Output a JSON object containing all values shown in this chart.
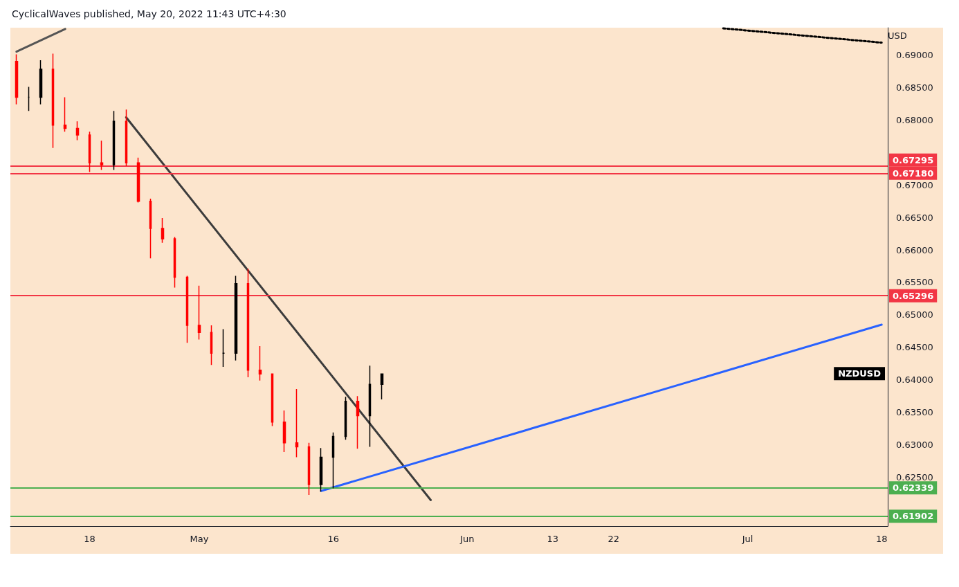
{
  "chart_data": {
    "type": "candlestick",
    "title": "CyclicalWaves published, May 20, 2022 11:43 UTC+4:30",
    "ylabel": "USD",
    "categories": [
      null,
      null,
      null,
      null,
      null,
      null,
      "18",
      null,
      null,
      null,
      null,
      null,
      null,
      null,
      null,
      "May",
      null,
      null,
      null,
      null,
      null,
      null,
      null,
      null,
      null,
      null,
      "16",
      null,
      null,
      null,
      null,
      null,
      null,
      null,
      null,
      null,
      null,
      "Jun",
      null,
      null,
      null,
      null,
      null,
      null,
      "13",
      null,
      null,
      null,
      null,
      "22",
      null,
      null,
      null,
      null,
      null,
      null,
      null,
      null,
      null,
      null,
      "Jul",
      null,
      null,
      null,
      null,
      null,
      null,
      null,
      null,
      null,
      null,
      "18"
    ],
    "ylim": [
      0.6175,
      0.6942
    ],
    "yticks": [
      {
        "value": 0.625,
        "label": "0.62500"
      },
      {
        "value": 0.63,
        "label": "0.63000"
      },
      {
        "value": 0.635,
        "label": "0.63500"
      },
      {
        "value": 0.64,
        "label": "0.64000"
      },
      {
        "value": 0.645,
        "label": "0.64500"
      },
      {
        "value": 0.65,
        "label": "0.65000"
      },
      {
        "value": 0.655,
        "label": "0.65500"
      },
      {
        "value": 0.66,
        "label": "0.66000"
      },
      {
        "value": 0.665,
        "label": "0.66500"
      },
      {
        "value": 0.67,
        "label": "0.67000"
      },
      {
        "value": 0.68,
        "label": "0.68000"
      },
      {
        "value": 0.685,
        "label": "0.68500"
      },
      {
        "value": 0.69,
        "label": "0.69000"
      }
    ],
    "marker": "none",
    "series": [
      {
        "type": "candlestick",
        "name": "NZDUSD",
        "ohlc": [
          [
            0.689,
            0.6901,
            0.6824,
            0.6835
          ],
          [
            0.6835,
            0.6851,
            0.6814,
            0.6835
          ],
          [
            0.6835,
            0.6892,
            0.6824,
            0.6878
          ],
          [
            0.6878,
            0.6902,
            0.6757,
            0.6792
          ],
          [
            0.6792,
            0.6835,
            0.6782,
            0.6787
          ],
          [
            0.6787,
            0.6798,
            0.6769,
            0.6777
          ],
          [
            0.6777,
            0.6782,
            0.672,
            0.6734
          ],
          [
            0.6734,
            0.6768,
            0.6723,
            0.6731
          ],
          [
            0.6731,
            0.6814,
            0.6723,
            0.6798
          ],
          [
            0.6798,
            0.6816,
            0.6729,
            0.6734
          ],
          [
            0.6734,
            0.6742,
            0.6673,
            0.6675
          ],
          [
            0.6675,
            0.6679,
            0.6587,
            0.6633
          ],
          [
            0.6633,
            0.6649,
            0.6611,
            0.6617
          ],
          [
            0.6617,
            0.662,
            0.6542,
            0.6558
          ],
          [
            0.6558,
            0.656,
            0.6457,
            0.6484
          ],
          [
            0.6484,
            0.6545,
            0.6462,
            0.6473
          ],
          [
            0.6473,
            0.6484,
            0.6423,
            0.6441
          ],
          [
            0.6441,
            0.6478,
            0.642,
            0.6441
          ],
          [
            0.6441,
            0.656,
            0.643,
            0.6548
          ],
          [
            0.6548,
            0.6571,
            0.6404,
            0.6415
          ],
          [
            0.6415,
            0.6452,
            0.6399,
            0.6409
          ],
          [
            0.6409,
            0.6409,
            0.6329,
            0.6335
          ],
          [
            0.6335,
            0.6353,
            0.6289,
            0.6303
          ],
          [
            0.6303,
            0.6386,
            0.6281,
            0.6297
          ],
          [
            0.6297,
            0.6303,
            0.6223,
            0.6239
          ],
          [
            0.6239,
            0.6295,
            0.6228,
            0.6281
          ],
          [
            0.6281,
            0.6319,
            0.6233,
            0.6313
          ],
          [
            0.6313,
            0.6374,
            0.6308,
            0.6367
          ],
          [
            0.6367,
            0.6375,
            0.6294,
            0.6345
          ],
          [
            0.6345,
            0.6422,
            0.6297,
            0.6393
          ],
          [
            0.6393,
            0.6409,
            0.637,
            0.6409
          ],
          null,
          null,
          null,
          null,
          null,
          null,
          null,
          null,
          null,
          null,
          null,
          null,
          null,
          null,
          null,
          null,
          null,
          null,
          null,
          null,
          null,
          null,
          null,
          null,
          null,
          null,
          null,
          null,
          null,
          null,
          null,
          null,
          null,
          null,
          null,
          null,
          null,
          null,
          null,
          null,
          null
        ],
        "colors": [
          "#ff0000",
          "#000000",
          "#000000",
          "#ff0000",
          "#ff0000",
          "#ff0000",
          "#ff0000",
          "#ff0000",
          "#000000",
          "#ff0000",
          "#ff0000",
          "#ff0000",
          "#ff0000",
          "#ff0000",
          "#ff0000",
          "#ff0000",
          "#ff0000",
          "#000000",
          "#000000",
          "#ff0000",
          "#ff0000",
          "#ff0000",
          "#ff0000",
          "#ff0000",
          "#ff0000",
          "#000000",
          "#000000",
          "#000000",
          "#ff0000",
          "#000000",
          "#000000",
          null,
          null,
          null,
          null,
          null,
          null,
          null,
          null,
          null,
          null,
          null,
          null,
          null,
          null,
          null,
          null,
          null,
          null,
          null,
          null,
          null,
          null,
          null,
          null,
          null,
          null,
          null,
          null,
          null,
          null,
          null,
          null,
          null,
          null,
          null,
          null,
          null,
          null,
          null,
          null,
          null
        ]
      },
      {
        "type": "line",
        "color": "#3c3c3c",
        "line_style": "solid",
        "values": [
          null,
          null,
          null,
          null,
          null,
          null,
          null,
          null,
          null,
          0.6804,
          null,
          null,
          null,
          null,
          null,
          null,
          null,
          null,
          null,
          null,
          null,
          null,
          null,
          null,
          null,
          null,
          null,
          null,
          null,
          null,
          null,
          null,
          null,
          null,
          0.6215,
          null,
          null,
          null,
          null,
          null,
          null,
          null,
          null,
          null,
          null,
          null,
          null,
          null,
          null,
          null,
          null,
          null,
          null,
          null,
          null,
          null,
          null,
          null,
          null,
          null,
          null,
          null,
          null,
          null,
          null,
          null,
          null,
          null,
          null,
          null,
          null,
          null
        ]
      },
      {
        "type": "line",
        "color": "#2962ff",
        "line_style": "solid",
        "values": [
          null,
          null,
          null,
          null,
          null,
          null,
          null,
          null,
          null,
          null,
          null,
          null,
          null,
          null,
          null,
          null,
          null,
          null,
          null,
          null,
          null,
          null,
          null,
          null,
          null,
          0.6229,
          null,
          null,
          null,
          null,
          null,
          null,
          null,
          null,
          null,
          null,
          null,
          null,
          null,
          null,
          null,
          null,
          null,
          null,
          null,
          null,
          null,
          null,
          null,
          null,
          null,
          null,
          null,
          null,
          null,
          null,
          null,
          null,
          null,
          null,
          null,
          null,
          null,
          null,
          null,
          null,
          null,
          null,
          null,
          null,
          null,
          0.6485
        ]
      },
      {
        "type": "line",
        "color": "#000000",
        "line_style": "dotted",
        "values": [
          null,
          null,
          null,
          null,
          null,
          null,
          null,
          null,
          null,
          null,
          null,
          null,
          null,
          null,
          null,
          null,
          null,
          null,
          null,
          null,
          null,
          null,
          null,
          null,
          null,
          null,
          null,
          null,
          null,
          null,
          null,
          null,
          null,
          null,
          null,
          null,
          null,
          null,
          null,
          null,
          null,
          null,
          null,
          null,
          null,
          null,
          null,
          null,
          null,
          null,
          null,
          null,
          null,
          null,
          null,
          null,
          null,
          null,
          0.6941,
          null,
          null,
          null,
          null,
          null,
          null,
          null,
          null,
          null,
          null,
          null,
          null,
          0.6919
        ]
      },
      {
        "type": "line",
        "color": "#555555",
        "line_style": "solid",
        "values": [
          0.6905,
          null,
          null,
          null,
          0.694,
          null,
          null,
          null,
          null,
          null,
          null,
          null,
          null,
          null,
          null,
          null,
          null,
          null,
          null,
          null,
          null,
          null,
          null,
          null,
          null,
          null,
          null,
          null,
          null,
          null,
          null,
          null,
          null,
          null,
          null,
          null,
          null,
          null,
          null,
          null,
          null,
          null,
          null,
          null,
          null,
          null,
          null,
          null,
          null,
          null,
          null,
          null,
          null,
          null,
          null,
          null,
          null,
          null,
          null,
          null,
          null,
          null,
          null,
          null,
          null,
          null,
          null,
          null,
          null,
          null,
          null,
          null
        ]
      }
    ],
    "ref_lines": [
      {
        "axis": "y",
        "value": 0.67295,
        "label": "0.67295",
        "color": "#f23645"
      },
      {
        "axis": "y",
        "value": 0.6718,
        "label": "0.67180",
        "color": "#f23645"
      },
      {
        "axis": "y",
        "value": 0.65296,
        "label": "0.65296",
        "color": "#f23645"
      },
      {
        "axis": "y",
        "value": 0.62339,
        "label": "0.62339",
        "color": "#4caf50"
      },
      {
        "axis": "y",
        "value": 0.61902,
        "label": "0.61902",
        "color": "#4caf50"
      }
    ]
  }
}
